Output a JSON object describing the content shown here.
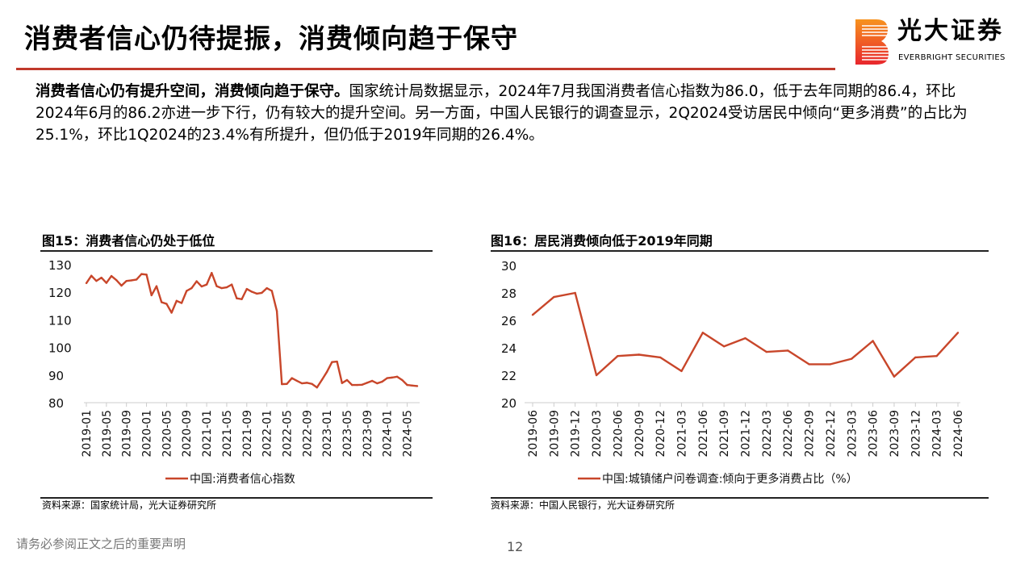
{
  "header": {
    "title": "消费者信心仍待提振，消费倾向趋于保守"
  },
  "logo": {
    "cn": "光大证券",
    "en": "EVERBRIGHT SECURITIES",
    "colors": [
      "#f7931e",
      "#e8262d"
    ]
  },
  "paragraph": {
    "bold": "消费者信心仍有提升空间，消费倾向趋于保守。",
    "text": "国家统计局数据显示，2024年7月我国消费者信心指数为86.0，低于去年同期的86.4，环比2024年6月的86.2亦进一步下行，仍有较大的提升空间。另一方面，中国人民银行的调查显示，2Q2024受访居民中倾向“更多消费”的占比为25.1%，环比1Q2024的23.4%有所提升，但仍低于2019年同期的26.4%。"
  },
  "line_color": "#c8462a",
  "chart_data": [
    {
      "type": "line",
      "title": "图15：消费者信心仍处于低位",
      "source": "资料来源：国家统计局，光大证券研究所",
      "legend": "bottom",
      "grid": false,
      "ylim": [
        80,
        130
      ],
      "yticks": [
        80,
        90,
        100,
        110,
        120,
        130
      ],
      "xtick_labels": [
        "2019-01",
        "2019-05",
        "2019-09",
        "2020-01",
        "2020-05",
        "2020-09",
        "2021-01",
        "2021-05",
        "2021-09",
        "2022-01",
        "2022-05",
        "2022-09",
        "2023-01",
        "2023-05",
        "2023-09",
        "2024-01",
        "2024-05"
      ],
      "x_start": "2019-01",
      "x_end": "2024-07",
      "frequency": "monthly",
      "series": [
        {
          "name": "中国:消费者信心指数",
          "values": [
            123.3,
            126.0,
            124.1,
            125.3,
            123.4,
            125.9,
            124.4,
            122.4,
            124.1,
            124.3,
            124.6,
            126.6,
            126.4,
            118.9,
            122.2,
            116.4,
            115.8,
            112.6,
            116.9,
            116.1,
            120.5,
            121.5,
            124.0,
            122.1,
            122.8,
            127.0,
            122.2,
            121.5,
            121.8,
            122.8,
            117.8,
            117.5,
            121.2,
            120.2,
            119.5,
            119.8,
            121.5,
            120.5,
            113.2,
            86.7,
            86.8,
            88.9,
            87.9,
            87.0,
            87.2,
            86.8,
            85.5,
            88.3,
            91.2,
            94.7,
            94.9,
            87.1,
            88.2,
            86.4,
            86.4,
            86.5,
            87.2,
            87.9,
            87.0,
            87.6,
            88.9,
            89.1,
            89.4,
            88.2,
            86.4,
            86.2,
            86.0
          ]
        }
      ]
    },
    {
      "type": "line",
      "title": "图16：居民消费倾向低于2019年同期",
      "source": "资料来源：中国人民银行，光大证券研究所",
      "legend": "bottom",
      "grid": false,
      "ylim": [
        20,
        30
      ],
      "yticks": [
        20,
        22,
        24,
        26,
        28,
        30
      ],
      "categories": [
        "2019-06",
        "2019-09",
        "2019-12",
        "2020-03",
        "2020-06",
        "2020-09",
        "2020-12",
        "2021-03",
        "2021-06",
        "2021-09",
        "2021-12",
        "2022-03",
        "2022-06",
        "2022-09",
        "2022-12",
        "2023-03",
        "2023-06",
        "2023-09",
        "2023-12",
        "2024-03",
        "2024-06"
      ],
      "series": [
        {
          "name": "中国:城镇储户问卷调查:倾向于更多消费占比（%）",
          "values": [
            26.4,
            27.7,
            28.0,
            22.0,
            23.4,
            23.5,
            23.3,
            22.3,
            25.1,
            24.1,
            24.7,
            23.7,
            23.8,
            22.8,
            22.8,
            23.2,
            24.5,
            21.9,
            23.3,
            23.4,
            25.1
          ]
        }
      ]
    }
  ],
  "footer": {
    "disclaimer": "请务必参阅正文之后的重要声明",
    "page": "12"
  }
}
